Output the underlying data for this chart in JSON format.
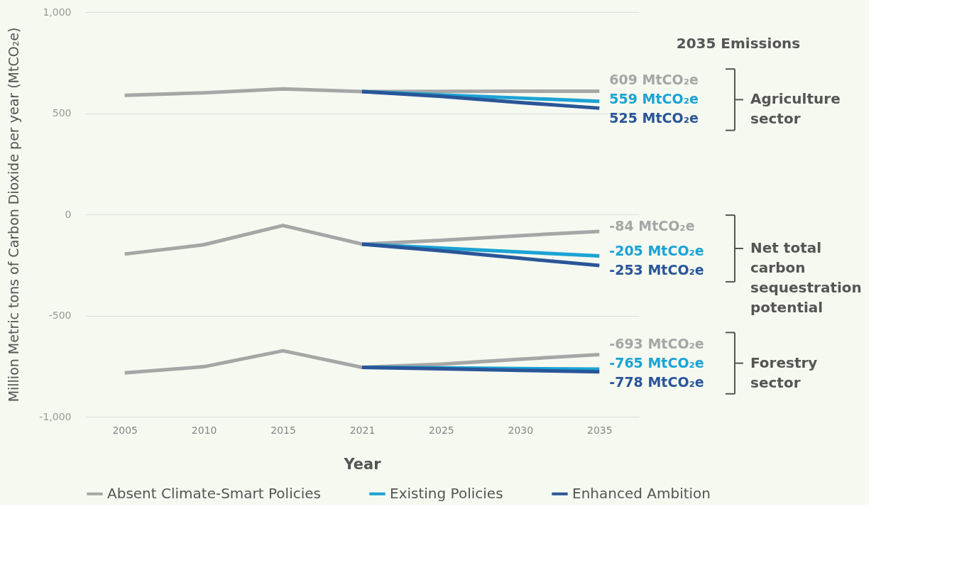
{
  "chart_data": {
    "type": "line",
    "xlabel": "Year",
    "ylabel": "Million Metric tons of Carbon Dioxide per year (MtCO₂e)",
    "categories": [
      "2005",
      "2010",
      "2015",
      "2021",
      "2025",
      "2030",
      "2035"
    ],
    "ylim": [
      -1000,
      1000
    ],
    "yticks": [
      {
        "value": -1000,
        "label": "-1,000"
      },
      -500,
      0,
      500,
      {
        "value": 1000,
        "label": "1,000"
      }
    ],
    "grid": "y",
    "legend": "bottom",
    "marker": "none",
    "line_style": "solid",
    "series": [
      {
        "name": "Absent Climate-Smart Policies",
        "color": "#a6a6a6",
        "values": [
          589,
          601,
          620,
          607,
          608,
          609,
          609
        ],
        "value_labels": [
          null,
          null,
          null,
          null,
          null,
          null,
          "609 MtCO₂e"
        ]
      },
      {
        "name": "Existing Policies",
        "color": "#1ba3d4",
        "values": [
          null,
          null,
          null,
          607,
          590,
          575,
          559
        ],
        "value_labels": [
          null,
          null,
          null,
          null,
          null,
          null,
          "559 MtCO₂e"
        ]
      },
      {
        "name": "Enhanced Ambition",
        "color": "#2a5598",
        "values": [
          null,
          null,
          null,
          607,
          583,
          553,
          525
        ],
        "value_labels": [
          null,
          null,
          null,
          null,
          null,
          null,
          "525 MtCO₂e"
        ]
      },
      {
        "color": "#a6a6a6",
        "values": [
          -196,
          -150,
          -55,
          -147,
          -128,
          -105,
          -84
        ],
        "value_labels": [
          null,
          null,
          null,
          null,
          null,
          null,
          "-84 MtCO₂e"
        ]
      },
      {
        "color": "#1ba3d4",
        "values": [
          null,
          null,
          null,
          -147,
          -167,
          -186,
          -205
        ],
        "value_labels": [
          null,
          null,
          null,
          null,
          null,
          null,
          "-205 MtCO₂e"
        ]
      },
      {
        "color": "#2a5598",
        "values": [
          null,
          null,
          null,
          -147,
          -180,
          -217,
          -253
        ],
        "value_labels": [
          null,
          null,
          null,
          null,
          null,
          null,
          "-253 MtCO₂e"
        ]
      },
      {
        "color": "#a6a6a6",
        "values": [
          -783,
          -753,
          -674,
          -756,
          -740,
          -716,
          -693
        ],
        "value_labels": [
          null,
          null,
          null,
          null,
          null,
          null,
          "-693 MtCO₂e"
        ]
      },
      {
        "color": "#1ba3d4",
        "values": [
          null,
          null,
          null,
          -756,
          -759,
          -762,
          -765
        ],
        "value_labels": [
          null,
          null,
          null,
          null,
          null,
          null,
          "-765 MtCO₂e"
        ]
      },
      {
        "color": "#2a5598",
        "values": [
          null,
          null,
          null,
          -756,
          -763,
          -771,
          -778
        ],
        "value_labels": [
          null,
          null,
          null,
          null,
          null,
          null,
          "-778 MtCO₂e"
        ]
      }
    ],
    "annotations": [
      "2035 Emissions",
      "Agriculture sector",
      "Net total carbon sequestration potential",
      "Forestry sector"
    ]
  }
}
